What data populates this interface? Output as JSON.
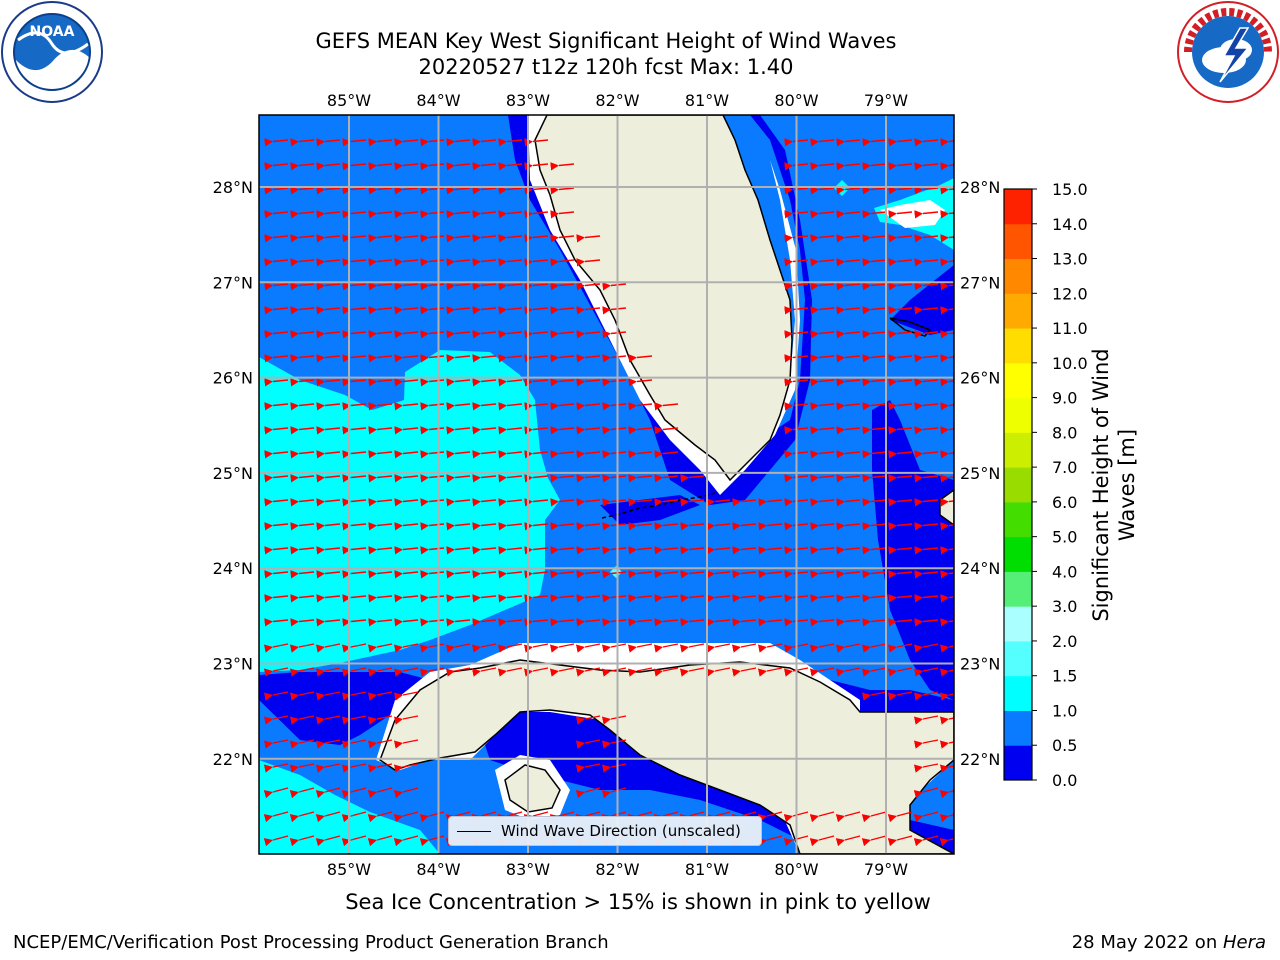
{
  "title": {
    "line1": "GEFS MEAN Key West Significant Height of Wind Waves",
    "line2": "20220527 t12z 120h fcst   Max: 1.40"
  },
  "logos": {
    "left": "NOAA",
    "right": "NATIONAL WEATHER SERVICE"
  },
  "map": {
    "lon_labels": [
      "85°W",
      "84°W",
      "83°W",
      "82°W",
      "81°W",
      "80°W",
      "79°W"
    ],
    "lat_labels": [
      "28°N",
      "27°N",
      "26°N",
      "25°N",
      "24°N",
      "23°N",
      "22°N"
    ],
    "colors": {
      "land": "#eeeedd",
      "ocean_0_0.5": "#0000f0",
      "ocean_0.5_1.0": "#0a7aff",
      "ocean_1.0_1.5": "#00ffff",
      "arrow": "#ff0000"
    },
    "legend_label": "Wind Wave Direction (unscaled)"
  },
  "colorbar": {
    "label": "Significant Height of Wind Waves [m]",
    "ticks": [
      "0.0",
      "0.5",
      "1.0",
      "1.5",
      "2.0",
      "3.0",
      "4.0",
      "5.0",
      "6.0",
      "7.0",
      "8.0",
      "9.0",
      "10.0",
      "11.0",
      "12.0",
      "13.0",
      "14.0",
      "15.0"
    ],
    "colors": [
      "#0000f0",
      "#0a7aff",
      "#00ffff",
      "#55ffff",
      "#aaffff",
      "#55ee77",
      "#00dd00",
      "#44dd00",
      "#99dd00",
      "#ccee00",
      "#eeff00",
      "#ffff00",
      "#ffdd00",
      "#ffaa00",
      "#ff8800",
      "#ff5500",
      "#ff2200"
    ]
  },
  "ice_note": "Sea Ice Concentration > 15% is shown in pink to yellow",
  "footer": {
    "left": "NCEP/EMC/Verification Post Processing Product Generation Branch",
    "date": "28 May 2022 on ",
    "host": "Hera"
  }
}
